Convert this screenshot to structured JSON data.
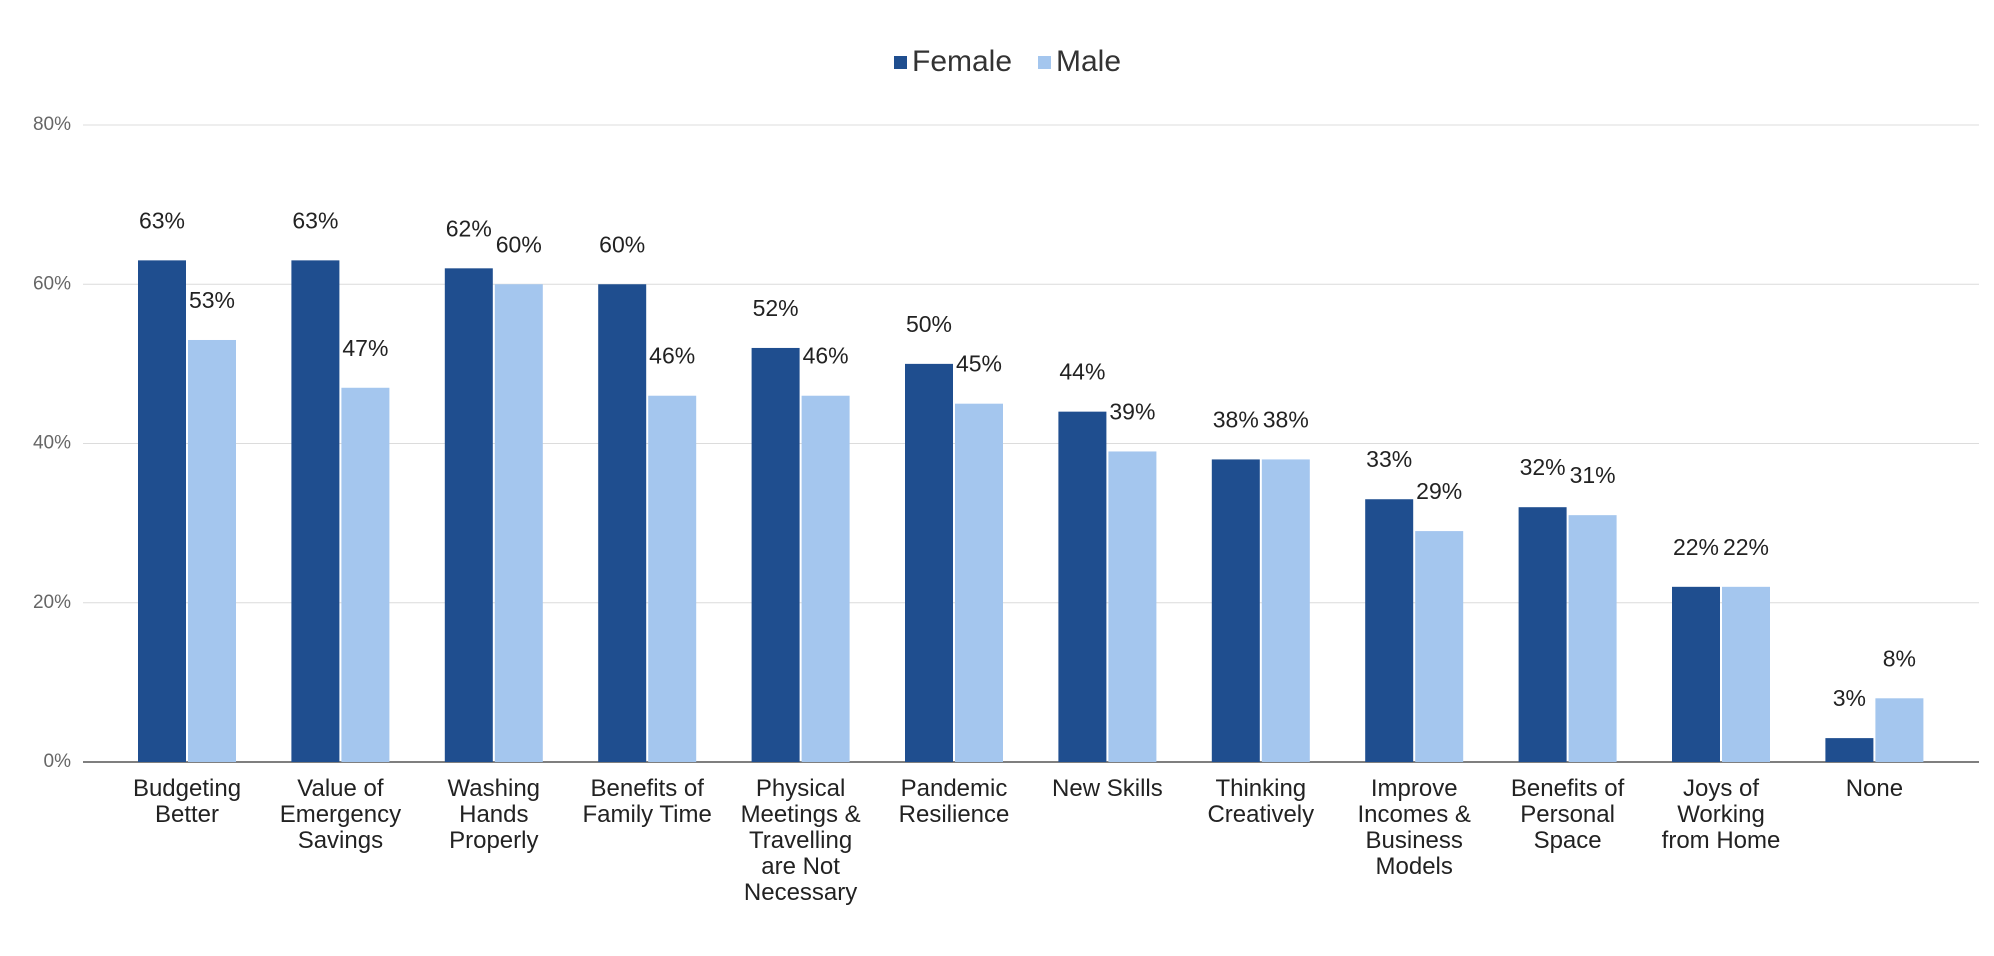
{
  "chart_data": {
    "type": "bar",
    "categories": [
      "Budgeting Better",
      "Value of Emergency Savings",
      "Washing Hands Properly",
      "Benefits of Family Time",
      "Physical Meetings & Travelling are Not Necessary",
      "Pandemic Resilience",
      "New Skills",
      "Thinking Creatively",
      "Improve Incomes & Business Models",
      "Benefits of Personal Space",
      "Joys of Working from Home",
      "None"
    ],
    "series": [
      {
        "name": "Female",
        "color": "#1f4e8f",
        "values": [
          63,
          63,
          62,
          60,
          52,
          50,
          44,
          38,
          33,
          32,
          22,
          3
        ],
        "value_labels": [
          "63%",
          "63%",
          "62%",
          "60%",
          "52%",
          "50%",
          "44%",
          "38%",
          "33%",
          "32%",
          "22%",
          "3%"
        ]
      },
      {
        "name": "Male",
        "color": "#a4c6ee",
        "values": [
          53,
          47,
          60,
          46,
          46,
          45,
          39,
          38,
          29,
          31,
          22,
          8
        ],
        "value_labels": [
          "53%",
          "47%",
          "60%",
          "46%",
          "46%",
          "45%",
          "39%",
          "38%",
          "29%",
          "31%",
          "22%",
          "8%"
        ]
      }
    ],
    "ylim": [
      0,
      80
    ],
    "yticks": [
      {
        "value": 0,
        "label": "0%"
      },
      {
        "value": 20,
        "label": "20%"
      },
      {
        "value": 40,
        "label": "40%"
      },
      {
        "value": 60,
        "label": "60%"
      },
      {
        "value": 80,
        "label": "80%"
      }
    ],
    "grid": true,
    "legend": "top"
  }
}
